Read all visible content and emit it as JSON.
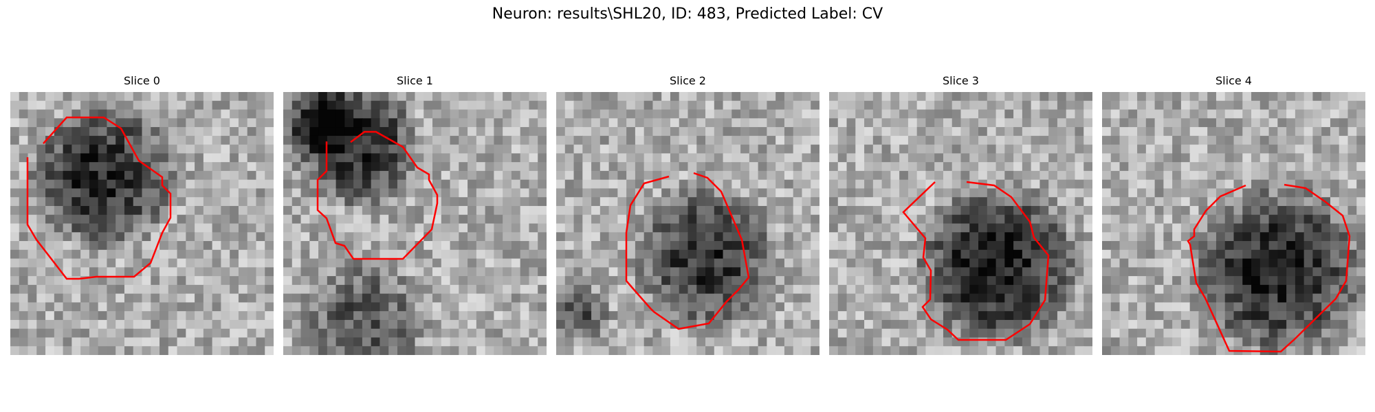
{
  "figure": {
    "title": "Neuron: results\\SHL20, ID: 483, Predicted Label: CV"
  },
  "panels": [
    {
      "title": "Slice 0",
      "image": "grayscale-microscopy-slice-0",
      "contour_color": "#ff0000"
    },
    {
      "title": "Slice 1",
      "image": "grayscale-microscopy-slice-1",
      "contour_color": "#ff0000"
    },
    {
      "title": "Slice 2",
      "image": "grayscale-microscopy-slice-2",
      "contour_color": "#ff0000"
    },
    {
      "title": "Slice 3",
      "image": "grayscale-microscopy-slice-3",
      "contour_color": "#ff0000"
    },
    {
      "title": "Slice 4",
      "image": "grayscale-microscopy-slice-4",
      "contour_color": "#ff0000"
    }
  ]
}
